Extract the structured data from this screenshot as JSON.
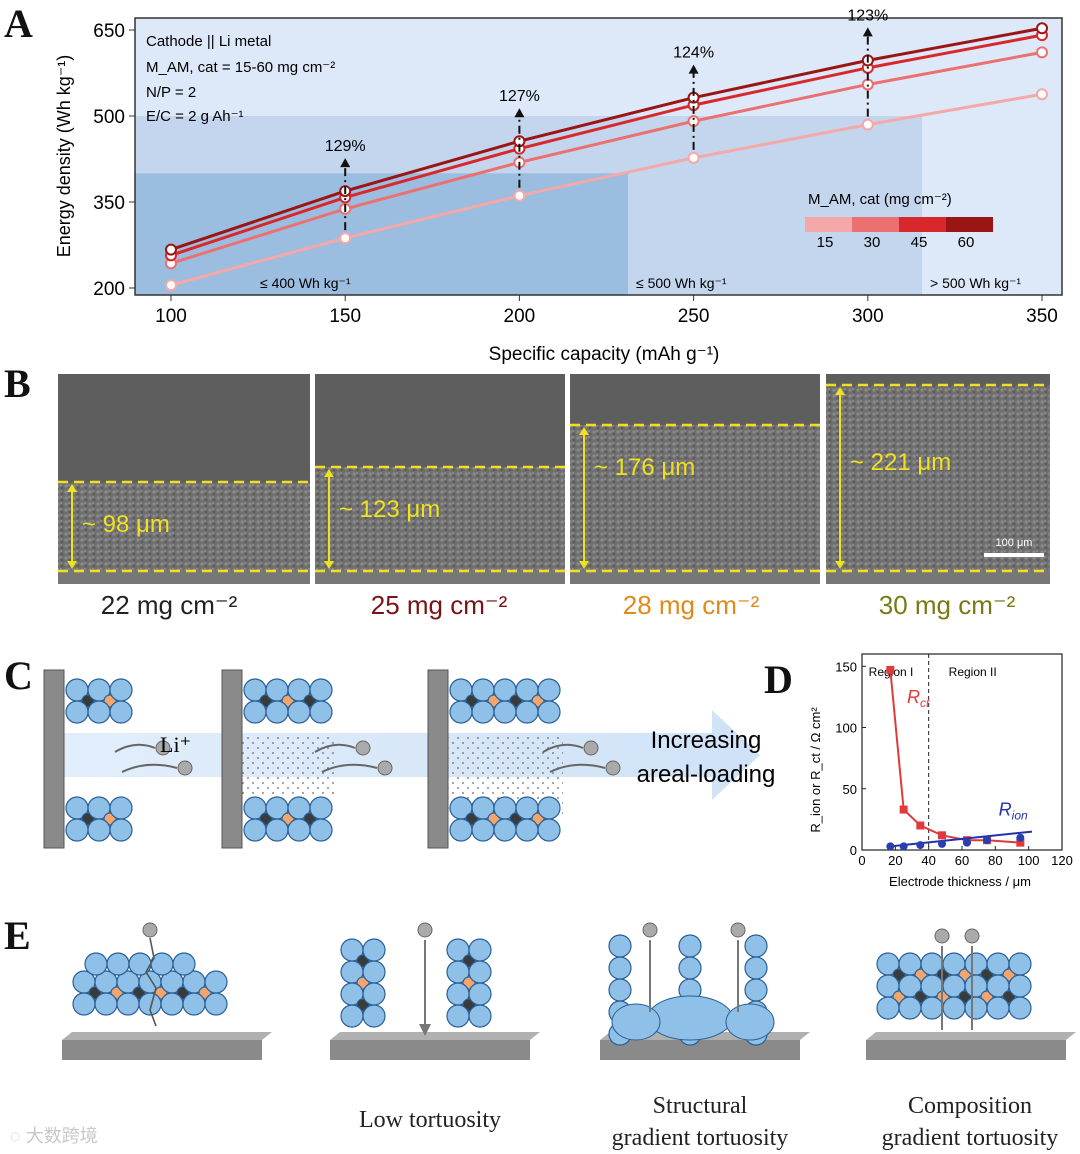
{
  "panels": {
    "a": "A",
    "b": "B",
    "c": "C",
    "d": "D",
    "e": "E"
  },
  "chart_data": [
    {
      "type": "line",
      "panel": "A",
      "xlabel": "Specific capacity (mAh g⁻¹)",
      "ylabel": "Energy density (Wh kg⁻¹)",
      "xlim": [
        90,
        355
      ],
      "ylim": [
        190,
        665
      ],
      "xticks": [
        100,
        150,
        200,
        250,
        300,
        350
      ],
      "yticks": [
        200,
        350,
        500,
        650
      ],
      "x": [
        100,
        150,
        200,
        250,
        300,
        350
      ],
      "series": [
        {
          "name": "15",
          "values": [
            205,
            287,
            361,
            427,
            485,
            538
          ]
        },
        {
          "name": "30",
          "values": [
            243,
            338,
            419,
            491,
            555,
            611
          ]
        },
        {
          "name": "45",
          "values": [
            257,
            358,
            443,
            519,
            584,
            641
          ]
        },
        {
          "name": "60",
          "values": [
            267,
            369,
            456,
            532,
            597,
            653
          ]
        }
      ],
      "annotations": [
        {
          "x": 150,
          "label": "129%"
        },
        {
          "x": 200,
          "label": "127%"
        },
        {
          "x": 250,
          "label": "124%"
        },
        {
          "x": 300,
          "label": "123%"
        }
      ],
      "regions": [
        "≤ 400 Wh kg⁻¹",
        "≤ 500 Wh kg⁻¹",
        "> 500 Wh kg⁻¹"
      ],
      "info_lines": [
        "Cathode || Li metal",
        "M_AM, cat = 15-60 mg cm⁻²",
        "N/P = 2",
        "E/C = 2 g Ah⁻¹"
      ],
      "legend_title": "M_AM, cat (mg cm⁻²)",
      "legend": [
        "15",
        "30",
        "45",
        "60"
      ],
      "colors": {
        "15": "#f4a9a8",
        "30": "#ec7070",
        "45": "#d8282b",
        "60": "#9b1515"
      }
    },
    {
      "type": "line",
      "panel": "D",
      "xlabel": "Electrode thickness / μm",
      "ylabel": "R_ion or R_ct / Ω cm²",
      "xlim": [
        0,
        120
      ],
      "ylim": [
        0,
        160
      ],
      "xticks": [
        0,
        20,
        40,
        60,
        80,
        100,
        120
      ],
      "yticks": [
        0,
        50,
        100,
        150
      ],
      "regions": [
        "Region I",
        "Region II"
      ],
      "series": [
        {
          "name": "R_ct",
          "x": [
            17,
            25,
            35,
            48,
            63,
            75,
            95
          ],
          "values": [
            147,
            33,
            20,
            12,
            8,
            8,
            6
          ]
        },
        {
          "name": "R_ion",
          "x": [
            17,
            25,
            35,
            48,
            63,
            75,
            95
          ],
          "values": [
            3,
            3,
            4,
            5,
            6,
            8,
            10
          ]
        }
      ]
    }
  ],
  "panel_b": {
    "thickness": [
      "~ 98 μm",
      "~ 123 μm",
      "~ 176 μm",
      "~ 221 μm"
    ],
    "loading": [
      "22 mg cm⁻²",
      "25 mg cm⁻²",
      "28 mg cm⁻²",
      "30 mg cm⁻²"
    ],
    "loading_colors": [
      "#333333",
      "#7a1414",
      "#e08a1a",
      "#7a7a14"
    ],
    "scale_bar": "100 μm"
  },
  "panel_c": {
    "li_label": "Li⁺",
    "arrow_line1": "Increasing",
    "arrow_line2": "areal-loading"
  },
  "panel_e": {
    "captions": [
      {
        "line1": "",
        "line2": ""
      },
      {
        "line1": "Low tortuosity",
        "line2": ""
      },
      {
        "line1": "Structural",
        "line2": "gradient tortuosity"
      },
      {
        "line1": "Composition",
        "line2": "gradient tortuosity"
      }
    ]
  },
  "watermark": "大数跨境"
}
